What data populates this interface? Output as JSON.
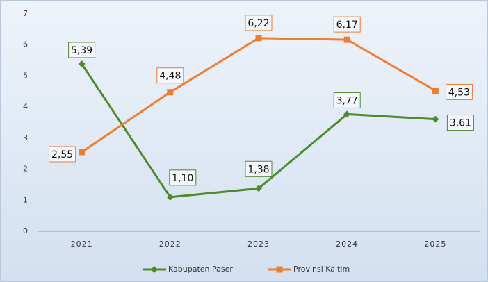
{
  "chart_data": {
    "type": "line",
    "categories": [
      "2021",
      "2022",
      "2023",
      "2024",
      "2025"
    ],
    "series": [
      {
        "name": "Kabupaten Paser",
        "color": "#4f8a2b",
        "marker": "diamond",
        "values": [
          5.39,
          1.1,
          1.38,
          3.77,
          3.61
        ],
        "value_labels": [
          "5,39",
          "1,10",
          "1,38",
          "3,77",
          "3,61"
        ]
      },
      {
        "name": "Provinsi Kaltim",
        "color": "#ed7d31",
        "marker": "square",
        "values": [
          2.55,
          4.48,
          6.22,
          6.17,
          4.53
        ],
        "value_labels": [
          "2,55",
          "4,48",
          "6,22",
          "6,17",
          "4,53"
        ]
      }
    ],
    "ylim": [
      0,
      7
    ],
    "yticks": [
      0,
      1,
      2,
      3,
      4,
      5,
      6,
      7
    ],
    "legend": "bottom"
  }
}
